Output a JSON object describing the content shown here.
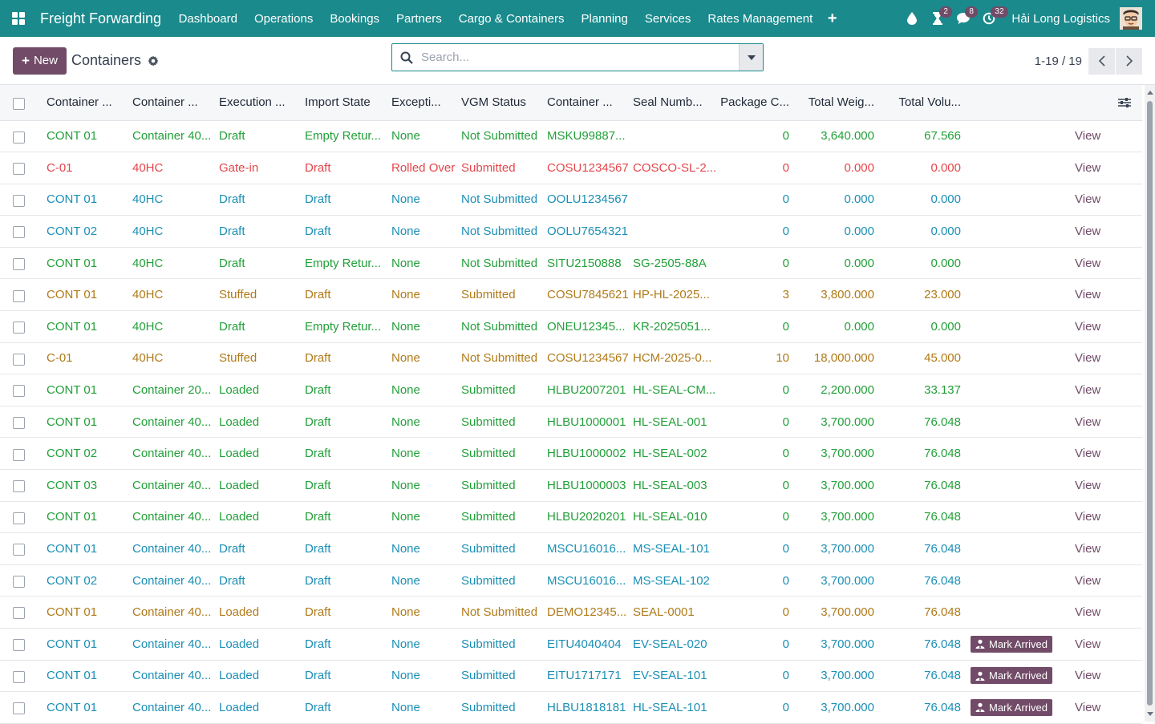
{
  "navbar": {
    "brand": "Freight Forwarding",
    "menu": [
      "Dashboard",
      "Operations",
      "Bookings",
      "Partners",
      "Cargo & Containers",
      "Planning",
      "Services",
      "Rates Management"
    ],
    "plus_label": "+",
    "badges": {
      "activities": "2",
      "messages": "8",
      "updates": "32"
    },
    "company": "Hải Long Logistics"
  },
  "control": {
    "new_label": "New",
    "title": "Containers",
    "search_placeholder": "Search...",
    "pager_value": "1-19 / 19"
  },
  "table": {
    "headers": [
      "Container ...",
      "Container ...",
      "Execution ...",
      "Import State",
      "Excepti...",
      "VGM Status",
      "Container ...",
      "Seal Numb...",
      "Package C...",
      "Total Weig...",
      "Total Volu..."
    ],
    "view_label": "View",
    "mark_arrived_label": "Mark Arrived",
    "rows": [
      {
        "color": "green",
        "c": [
          "CONT 01",
          "Container 40...",
          "Draft",
          "Empty Retur...",
          "None",
          "Not Submitted",
          "MSKU99887...",
          "",
          "0",
          "3,640.000",
          "67.566"
        ],
        "arrived": false
      },
      {
        "color": "red",
        "c": [
          "C-01",
          "40HC",
          "Gate-in",
          "Draft",
          "Rolled Over",
          "Submitted",
          "COSU1234567",
          "COSCO-SL-2...",
          "0",
          "0.000",
          "0.000"
        ],
        "arrived": false
      },
      {
        "color": "blue",
        "c": [
          "CONT 01",
          "40HC",
          "Draft",
          "Draft",
          "None",
          "Not Submitted",
          "OOLU1234567",
          "",
          "0",
          "0.000",
          "0.000"
        ],
        "arrived": false
      },
      {
        "color": "blue",
        "c": [
          "CONT 02",
          "40HC",
          "Draft",
          "Draft",
          "None",
          "Not Submitted",
          "OOLU7654321",
          "",
          "0",
          "0.000",
          "0.000"
        ],
        "arrived": false
      },
      {
        "color": "green",
        "c": [
          "CONT 01",
          "40HC",
          "Draft",
          "Empty Retur...",
          "None",
          "Not Submitted",
          "SITU2150888",
          "SG-2505-88A",
          "0",
          "0.000",
          "0.000"
        ],
        "arrived": false
      },
      {
        "color": "amber",
        "c": [
          "CONT 01",
          "40HC",
          "Stuffed",
          "Draft",
          "None",
          "Submitted",
          "COSU7845621",
          "HP-HL-2025...",
          "3",
          "3,800.000",
          "23.000"
        ],
        "arrived": false
      },
      {
        "color": "green",
        "c": [
          "CONT 01",
          "40HC",
          "Draft",
          "Empty Retur...",
          "None",
          "Not Submitted",
          "ONEU12345...",
          "KR-2025051...",
          "0",
          "0.000",
          "0.000"
        ],
        "arrived": false
      },
      {
        "color": "amber",
        "c": [
          "C-01",
          "40HC",
          "Stuffed",
          "Draft",
          "None",
          "Not Submitted",
          "COSU1234567",
          "HCM-2025-0...",
          "10",
          "18,000.000",
          "45.000"
        ],
        "arrived": false
      },
      {
        "color": "green",
        "c": [
          "CONT 01",
          "Container 20...",
          "Loaded",
          "Draft",
          "None",
          "Submitted",
          "HLBU2007201",
          "HL-SEAL-CM...",
          "0",
          "2,200.000",
          "33.137"
        ],
        "arrived": false
      },
      {
        "color": "green",
        "c": [
          "CONT 01",
          "Container 40...",
          "Loaded",
          "Draft",
          "None",
          "Submitted",
          "HLBU1000001",
          "HL-SEAL-001",
          "0",
          "3,700.000",
          "76.048"
        ],
        "arrived": false
      },
      {
        "color": "green",
        "c": [
          "CONT 02",
          "Container 40...",
          "Loaded",
          "Draft",
          "None",
          "Submitted",
          "HLBU1000002",
          "HL-SEAL-002",
          "0",
          "3,700.000",
          "76.048"
        ],
        "arrived": false
      },
      {
        "color": "green",
        "c": [
          "CONT 03",
          "Container 40...",
          "Loaded",
          "Draft",
          "None",
          "Submitted",
          "HLBU1000003",
          "HL-SEAL-003",
          "0",
          "3,700.000",
          "76.048"
        ],
        "arrived": false
      },
      {
        "color": "green",
        "c": [
          "CONT 01",
          "Container 40...",
          "Loaded",
          "Draft",
          "None",
          "Submitted",
          "HLBU2020201",
          "HL-SEAL-010",
          "0",
          "3,700.000",
          "76.048"
        ],
        "arrived": false
      },
      {
        "color": "blue",
        "c": [
          "CONT 01",
          "Container 40...",
          "Draft",
          "Draft",
          "None",
          "Submitted",
          "MSCU16016...",
          "MS-SEAL-101",
          "0",
          "3,700.000",
          "76.048"
        ],
        "arrived": false
      },
      {
        "color": "blue",
        "c": [
          "CONT 02",
          "Container 40...",
          "Draft",
          "Draft",
          "None",
          "Submitted",
          "MSCU16016...",
          "MS-SEAL-102",
          "0",
          "3,700.000",
          "76.048"
        ],
        "arrived": false
      },
      {
        "color": "amber",
        "c": [
          "CONT 01",
          "Container 40...",
          "Loaded",
          "Draft",
          "None",
          "Not Submitted",
          "DEMO12345...",
          "SEAL-0001",
          "0",
          "3,700.000",
          "76.048"
        ],
        "arrived": false
      },
      {
        "color": "blue",
        "c": [
          "CONT 01",
          "Container 40...",
          "Loaded",
          "Draft",
          "None",
          "Submitted",
          "EITU4040404",
          "EV-SEAL-020",
          "0",
          "3,700.000",
          "76.048"
        ],
        "arrived": true
      },
      {
        "color": "blue",
        "c": [
          "CONT 01",
          "Container 40...",
          "Loaded",
          "Draft",
          "None",
          "Submitted",
          "EITU1717171",
          "EV-SEAL-101",
          "0",
          "3,700.000",
          "76.048"
        ],
        "arrived": true
      },
      {
        "color": "blue",
        "c": [
          "CONT 01",
          "Container 40...",
          "Loaded",
          "Draft",
          "None",
          "Submitted",
          "HLBU1818181",
          "HL-SEAL-101",
          "0",
          "3,700.000",
          "76.048"
        ],
        "arrived": true
      }
    ]
  },
  "colors": {
    "navbar": "#1a8a8c",
    "primary": "#714b67",
    "green": "#23a03a",
    "red": "#e4464b",
    "blue": "#1b8fb5",
    "amber": "#b07a18"
  }
}
